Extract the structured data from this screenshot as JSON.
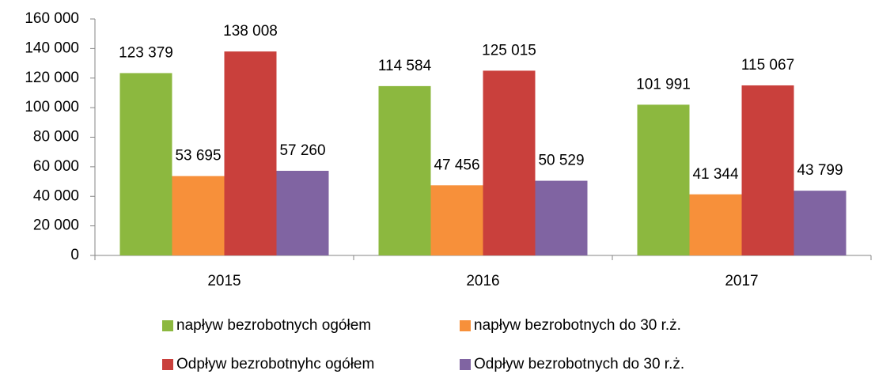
{
  "chart_data": {
    "type": "bar",
    "categories": [
      "2015",
      "2016",
      "2017"
    ],
    "series": [
      {
        "name": "napływ bezrobotnych ogółem",
        "color": "#8cb83f",
        "values": [
          123379,
          114584,
          101991
        ],
        "value_labels": [
          "123 379",
          "114 584",
          "101 991"
        ]
      },
      {
        "name": "napływ bezrobotnych do 30 r.ż.",
        "color": "#f7903a",
        "values": [
          53695,
          47456,
          41344
        ],
        "value_labels": [
          "53 695",
          "47 456",
          "41 344"
        ]
      },
      {
        "name": "Odpływ bezrobotnyhc ogółem",
        "color": "#c9403c",
        "values": [
          138008,
          125015,
          115067
        ],
        "value_labels": [
          "138 008",
          "125 015",
          "115 067"
        ]
      },
      {
        "name": "Odpływ bezrobotnych do 30 r.ż.",
        "color": "#8064a2",
        "values": [
          57260,
          50529,
          43799
        ],
        "value_labels": [
          "57 260",
          "50 529",
          "43 799"
        ]
      }
    ],
    "ylim": [
      0,
      160000
    ],
    "yticks": [
      0,
      {
        "value": 20000,
        "label": "20 000"
      },
      {
        "value": 40000,
        "label": "40 000"
      },
      {
        "value": 60000,
        "label": "60 000"
      },
      {
        "value": 80000,
        "label": "80 000"
      },
      {
        "value": 100000,
        "label": "100 000"
      },
      {
        "value": 120000,
        "label": "120 000"
      },
      {
        "value": 140000,
        "label": "140 000"
      },
      {
        "value": 160000,
        "label": "160 000"
      }
    ],
    "grid": false
  }
}
